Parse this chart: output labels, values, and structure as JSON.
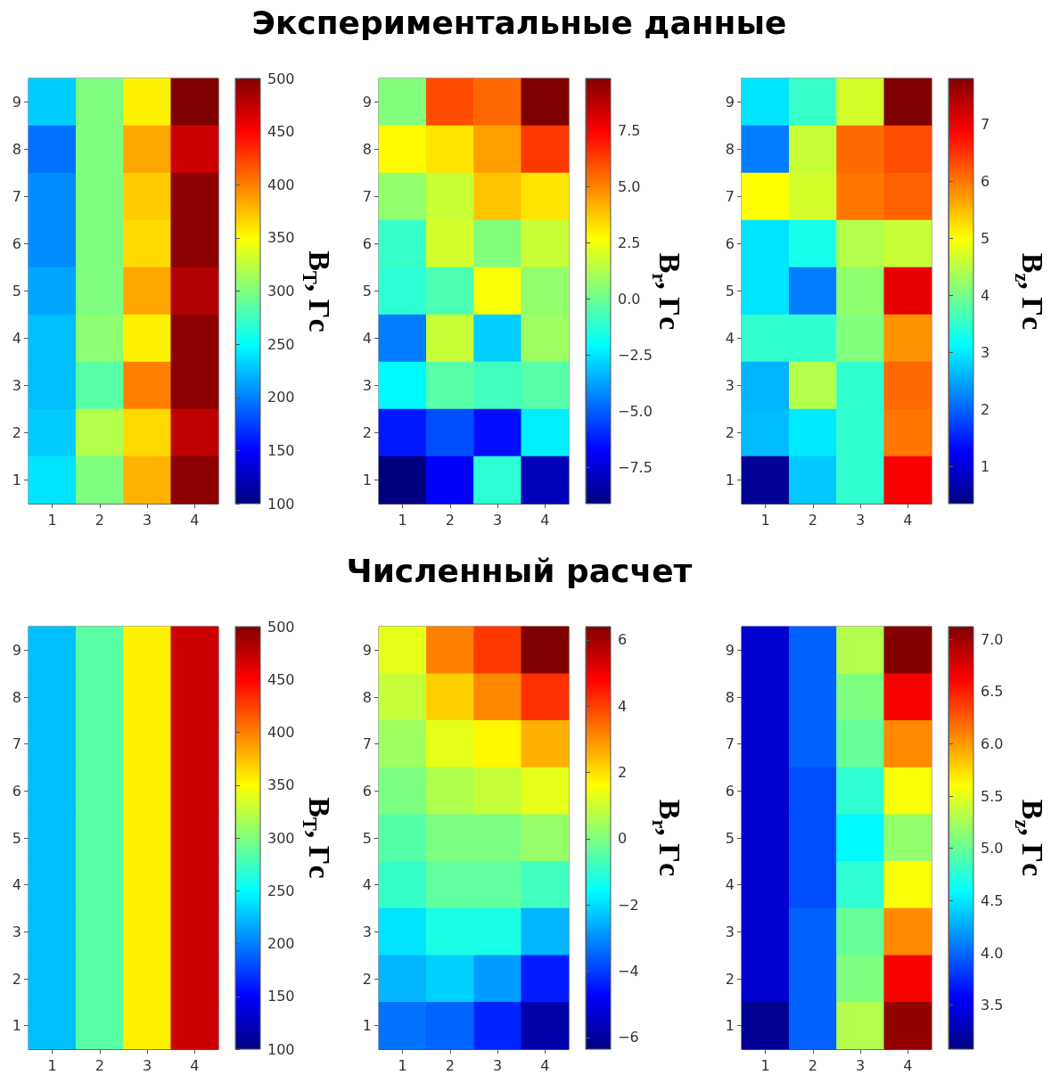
{
  "chart_data": [
    {
      "type": "heatmap",
      "clabel": "B$_{T}$, Гс",
      "categories": [
        "1",
        "2",
        "3",
        "4"
      ],
      "y_categories": [
        "9",
        "8",
        "7",
        "6",
        "5",
        "4",
        "3",
        "2",
        "1"
      ],
      "cells": [
        [
          230,
          300,
          355,
          500
        ],
        [
          195,
          300,
          385,
          470
        ],
        [
          205,
          300,
          370,
          495
        ],
        [
          205,
          300,
          365,
          495
        ],
        [
          215,
          300,
          385,
          480
        ],
        [
          225,
          305,
          355,
          495
        ],
        [
          225,
          285,
          400,
          495
        ],
        [
          230,
          320,
          365,
          475
        ],
        [
          240,
          300,
          380,
          495
        ]
      ],
      "clim": [
        100,
        500
      ],
      "cticks": [
        100,
        150,
        200,
        250,
        300,
        350,
        400,
        450,
        500
      ]
    },
    {
      "type": "heatmap",
      "title": "Экспериментальные данные",
      "clabel": "B$_{r}$, Гс",
      "categories": [
        "1",
        "2",
        "3",
        "4"
      ],
      "y_categories": [
        "9",
        "8",
        "7",
        "6",
        "5",
        "4",
        "3",
        "2",
        "1"
      ],
      "cells": [
        [
          0.4,
          6.0,
          5.5,
          9.8
        ],
        [
          2.8,
          3.2,
          4.5,
          6.4
        ],
        [
          0.7,
          1.7,
          3.8,
          3.2
        ],
        [
          -1.0,
          1.9,
          0.4,
          1.7
        ],
        [
          -1.2,
          -0.6,
          2.6,
          0.7
        ],
        [
          -4.4,
          1.7,
          -2.9,
          0.9
        ],
        [
          -2.1,
          -0.4,
          -0.8,
          -0.4
        ],
        [
          -6.3,
          -5.3,
          -6.5,
          -2.3
        ],
        [
          -9.1,
          -6.8,
          -1.2,
          -8.0
        ]
      ],
      "clim": [
        -9.1,
        9.8
      ],
      "cticks": [
        {
          "value": -7.5,
          "label": "−7.5"
        },
        {
          "value": -5,
          "label": "−5.0"
        },
        {
          "value": -2.5,
          "label": "−2.5"
        },
        {
          "value": 0,
          "label": "0.0"
        },
        2.5,
        {
          "value": 5,
          "label": "5.0"
        },
        7.5
      ]
    },
    {
      "type": "heatmap",
      "clabel": "B$_{z}$, Гс",
      "categories": [
        "1",
        "2",
        "3",
        "4"
      ],
      "y_categories": [
        "9",
        "8",
        "7",
        "6",
        "5",
        "4",
        "3",
        "2",
        "1"
      ],
      "cells": [
        [
          2.95,
          3.55,
          4.7,
          7.8
        ],
        [
          2.2,
          4.6,
          6.1,
          6.3
        ],
        [
          5.0,
          4.7,
          6.0,
          6.15
        ],
        [
          2.95,
          3.3,
          4.45,
          4.6
        ],
        [
          2.95,
          2.2,
          4.2,
          7.05
        ],
        [
          3.5,
          3.5,
          4.1,
          5.8
        ],
        [
          2.6,
          4.45,
          3.5,
          6.1
        ],
        [
          2.65,
          3.0,
          3.5,
          6.0
        ],
        [
          0.5,
          2.75,
          3.5,
          6.9
        ]
      ],
      "clim": [
        0.35,
        7.8
      ],
      "cticks": [
        1,
        2,
        3,
        4,
        5,
        6,
        7
      ]
    },
    {
      "type": "heatmap",
      "clabel": "B$_{T}$, Гс",
      "categories": [
        "1",
        "2",
        "3",
        "4"
      ],
      "y_categories": [
        "9",
        "8",
        "7",
        "6",
        "5",
        "4",
        "3",
        "2",
        "1"
      ],
      "cells": [
        [
          225,
          285,
          355,
          470
        ],
        [
          225,
          285,
          355,
          470
        ],
        [
          225,
          285,
          355,
          470
        ],
        [
          225,
          285,
          355,
          470
        ],
        [
          225,
          285,
          355,
          470
        ],
        [
          225,
          285,
          355,
          470
        ],
        [
          225,
          285,
          355,
          470
        ],
        [
          225,
          285,
          355,
          470
        ],
        [
          225,
          285,
          355,
          470
        ]
      ],
      "clim": [
        100,
        500
      ],
      "cticks": [
        100,
        150,
        200,
        250,
        300,
        350,
        400,
        450,
        500
      ]
    },
    {
      "type": "heatmap",
      "title": "Численный расчет",
      "clabel": "B$_{r}$, Гс",
      "categories": [
        "1",
        "2",
        "3",
        "4"
      ],
      "y_categories": [
        "9",
        "8",
        "7",
        "6",
        "5",
        "4",
        "3",
        "2",
        "1"
      ],
      "cells": [
        [
          1.3,
          3.2,
          4.1,
          6.4
        ],
        [
          0.9,
          2.2,
          3.1,
          4.2
        ],
        [
          0.4,
          1.3,
          1.7,
          2.6
        ],
        [
          0.0,
          0.65,
          0.9,
          1.3
        ],
        [
          -0.5,
          0.0,
          0.0,
          0.3
        ],
        [
          -0.9,
          -0.35,
          -0.35,
          -0.75
        ],
        [
          -1.9,
          -1.25,
          -1.25,
          -2.5
        ],
        [
          -2.5,
          -2.15,
          -2.8,
          -4.4
        ],
        [
          -3.3,
          -3.5,
          -4.3,
          -5.8
        ]
      ],
      "clim": [
        -6.35,
        6.4
      ],
      "cticks": [
        {
          "value": -6,
          "label": "−6"
        },
        {
          "value": -4,
          "label": "−4"
        },
        {
          "value": -2,
          "label": "−2"
        },
        0,
        2,
        4,
        6
      ]
    },
    {
      "type": "heatmap",
      "clabel": "B$_{z}$, Гс",
      "categories": [
        "1",
        "2",
        "3",
        "4"
      ],
      "y_categories": [
        "9",
        "8",
        "7",
        "6",
        "5",
        "4",
        "3",
        "2",
        "1"
      ],
      "cells": [
        [
          3.4,
          3.97,
          5.3,
          7.1
        ],
        [
          3.4,
          3.97,
          5.1,
          6.64
        ],
        [
          3.4,
          3.97,
          5.0,
          6.07
        ],
        [
          3.4,
          3.89,
          4.78,
          5.58
        ],
        [
          3.4,
          3.89,
          4.58,
          5.18
        ],
        [
          3.4,
          3.89,
          4.78,
          5.58
        ],
        [
          3.4,
          3.97,
          5.0,
          6.07
        ],
        [
          3.4,
          3.97,
          5.1,
          6.64
        ],
        [
          3.16,
          3.97,
          5.3,
          7.04
        ]
      ],
      "clim": [
        3.08,
        7.12
      ],
      "cticks": [
        3.5,
        {
          "value": 4,
          "label": "4.0"
        },
        4.5,
        {
          "value": 5,
          "label": "5.0"
        },
        5.5,
        {
          "value": 6,
          "label": "6.0"
        },
        6.5,
        {
          "value": 7,
          "label": "7.0"
        }
      ]
    }
  ]
}
